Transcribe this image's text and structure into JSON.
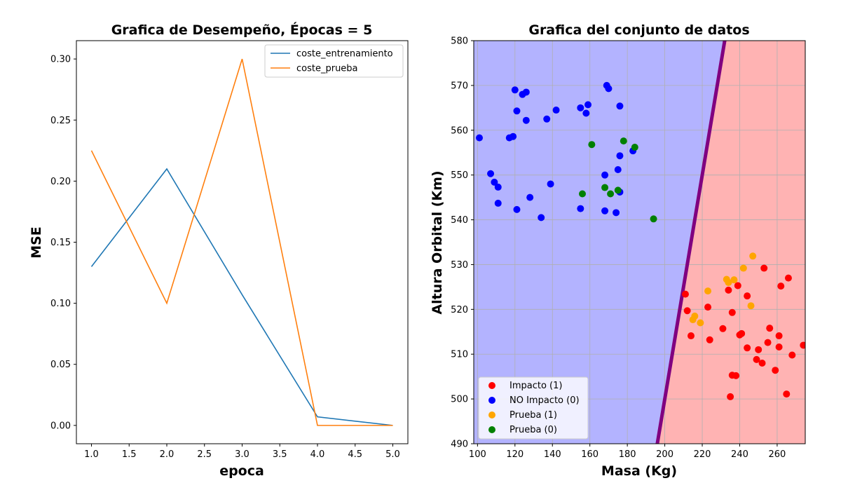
{
  "chart_data": [
    {
      "type": "line",
      "title": "Grafica de Desempeño, Épocas = 5",
      "xlabel": "epoca",
      "ylabel": "MSE",
      "xlim": [
        0.8,
        5.2
      ],
      "ylim": [
        -0.015,
        0.315
      ],
      "xticks": [
        "1.0",
        "1.5",
        "2.0",
        "2.5",
        "3.0",
        "3.5",
        "4.0",
        "4.5",
        "5.0"
      ],
      "yticks": [
        "0.00",
        "0.05",
        "0.10",
        "0.15",
        "0.20",
        "0.25",
        "0.30"
      ],
      "grid": false,
      "legend_position": "top-right",
      "x": [
        1,
        2,
        3,
        4,
        5
      ],
      "series": [
        {
          "name": "coste_entrenamiento",
          "color": "#1f77b4",
          "values": [
            0.13,
            0.21,
            0.107,
            0.007,
            0.0
          ]
        },
        {
          "name": "coste_prueba",
          "color": "#ff7f0e",
          "values": [
            0.225,
            0.1,
            0.3,
            0.0,
            0.0
          ]
        }
      ]
    },
    {
      "type": "scatter",
      "title": "Grafica del conjunto de datos",
      "xlabel": "Masa (Kg)",
      "ylabel": "Altura Orbital (Km)",
      "xlim": [
        98,
        275
      ],
      "ylim": [
        490,
        580
      ],
      "xticks": [
        "100",
        "120",
        "140",
        "160",
        "180",
        "200",
        "220",
        "240",
        "260"
      ],
      "yticks": [
        "490",
        "500",
        "510",
        "520",
        "530",
        "540",
        "550",
        "560",
        "570",
        "580"
      ],
      "grid": true,
      "legend_position": "bottom-left",
      "regions": {
        "left_color": "#b3b3ff",
        "right_color": "#ffb3b3",
        "boundary_color": "#800080"
      },
      "decision_boundary": [
        [
          196,
          490
        ],
        [
          232,
          580
        ]
      ],
      "series": [
        {
          "name": "Impacto (1)",
          "color": "#ff0000",
          "points": [
            [
              211,
              523.4
            ],
            [
              212,
              519.7
            ],
            [
              214,
              514.1
            ],
            [
              223,
              520.5
            ],
            [
              224,
              513.2
            ],
            [
              231,
              515.7
            ],
            [
              234,
              524.3
            ],
            [
              235,
              500.5
            ],
            [
              236,
              519.3
            ],
            [
              236,
              505.3
            ],
            [
              238,
              505.2
            ],
            [
              239,
              525.3
            ],
            [
              240,
              514.3
            ],
            [
              241,
              514.6
            ],
            [
              244,
              523
            ],
            [
              244,
              511.4
            ],
            [
              249,
              508.8
            ],
            [
              250,
              511
            ],
            [
              252,
              508
            ],
            [
              253,
              529.2
            ],
            [
              255,
              512.6
            ],
            [
              256,
              515.8
            ],
            [
              259,
              506.4
            ],
            [
              261,
              511.6
            ],
            [
              261,
              514.1
            ],
            [
              262,
              525.2
            ],
            [
              265,
              501.1
            ],
            [
              266,
              527
            ],
            [
              268,
              509.8
            ],
            [
              274,
              512
            ]
          ]
        },
        {
          "name": "NO Impacto (0)",
          "color": "#0000ff",
          "points": [
            [
              101,
              558.3
            ],
            [
              107,
              550.3
            ],
            [
              109,
              548.4
            ],
            [
              111,
              547.3
            ],
            [
              111,
              543.7
            ],
            [
              117,
              558.3
            ],
            [
              119,
              558.6
            ],
            [
              120,
              569
            ],
            [
              121,
              564.3
            ],
            [
              121,
              542.3
            ],
            [
              124,
              568
            ],
            [
              126,
              562.2
            ],
            [
              126,
              568.5
            ],
            [
              128,
              545
            ],
            [
              134,
              540.5
            ],
            [
              137,
              562.5
            ],
            [
              139,
              548
            ],
            [
              142,
              564.5
            ],
            [
              155,
              565
            ],
            [
              155,
              542.5
            ],
            [
              158,
              563.8
            ],
            [
              159,
              565.7
            ],
            [
              168,
              550
            ],
            [
              168,
              542
            ],
            [
              169,
              570
            ],
            [
              170,
              569.3
            ],
            [
              174,
              541.6
            ],
            [
              175,
              551.2
            ],
            [
              176,
              565.4
            ],
            [
              176,
              554.3
            ],
            [
              176,
              546.2
            ],
            [
              183,
              555.4
            ]
          ]
        },
        {
          "name": "Prueba (1)",
          "color": "#ffa500",
          "points": [
            [
              215,
              517.7
            ],
            [
              216,
              518.5
            ],
            [
              219,
              517
            ],
            [
              223,
              524.1
            ],
            [
              233,
              526.7
            ],
            [
              234,
              526
            ],
            [
              237,
              526.6
            ],
            [
              242,
              529.2
            ],
            [
              246,
              520.8
            ],
            [
              247,
              531.9
            ]
          ]
        },
        {
          "name": "Prueba (0)",
          "color": "#008000",
          "points": [
            [
              156,
              545.8
            ],
            [
              161,
              556.8
            ],
            [
              168,
              547.2
            ],
            [
              171,
              545.8
            ],
            [
              175,
              546.6
            ],
            [
              178,
              557.6
            ],
            [
              184,
              556.2
            ],
            [
              194,
              540.2
            ]
          ]
        }
      ]
    }
  ]
}
